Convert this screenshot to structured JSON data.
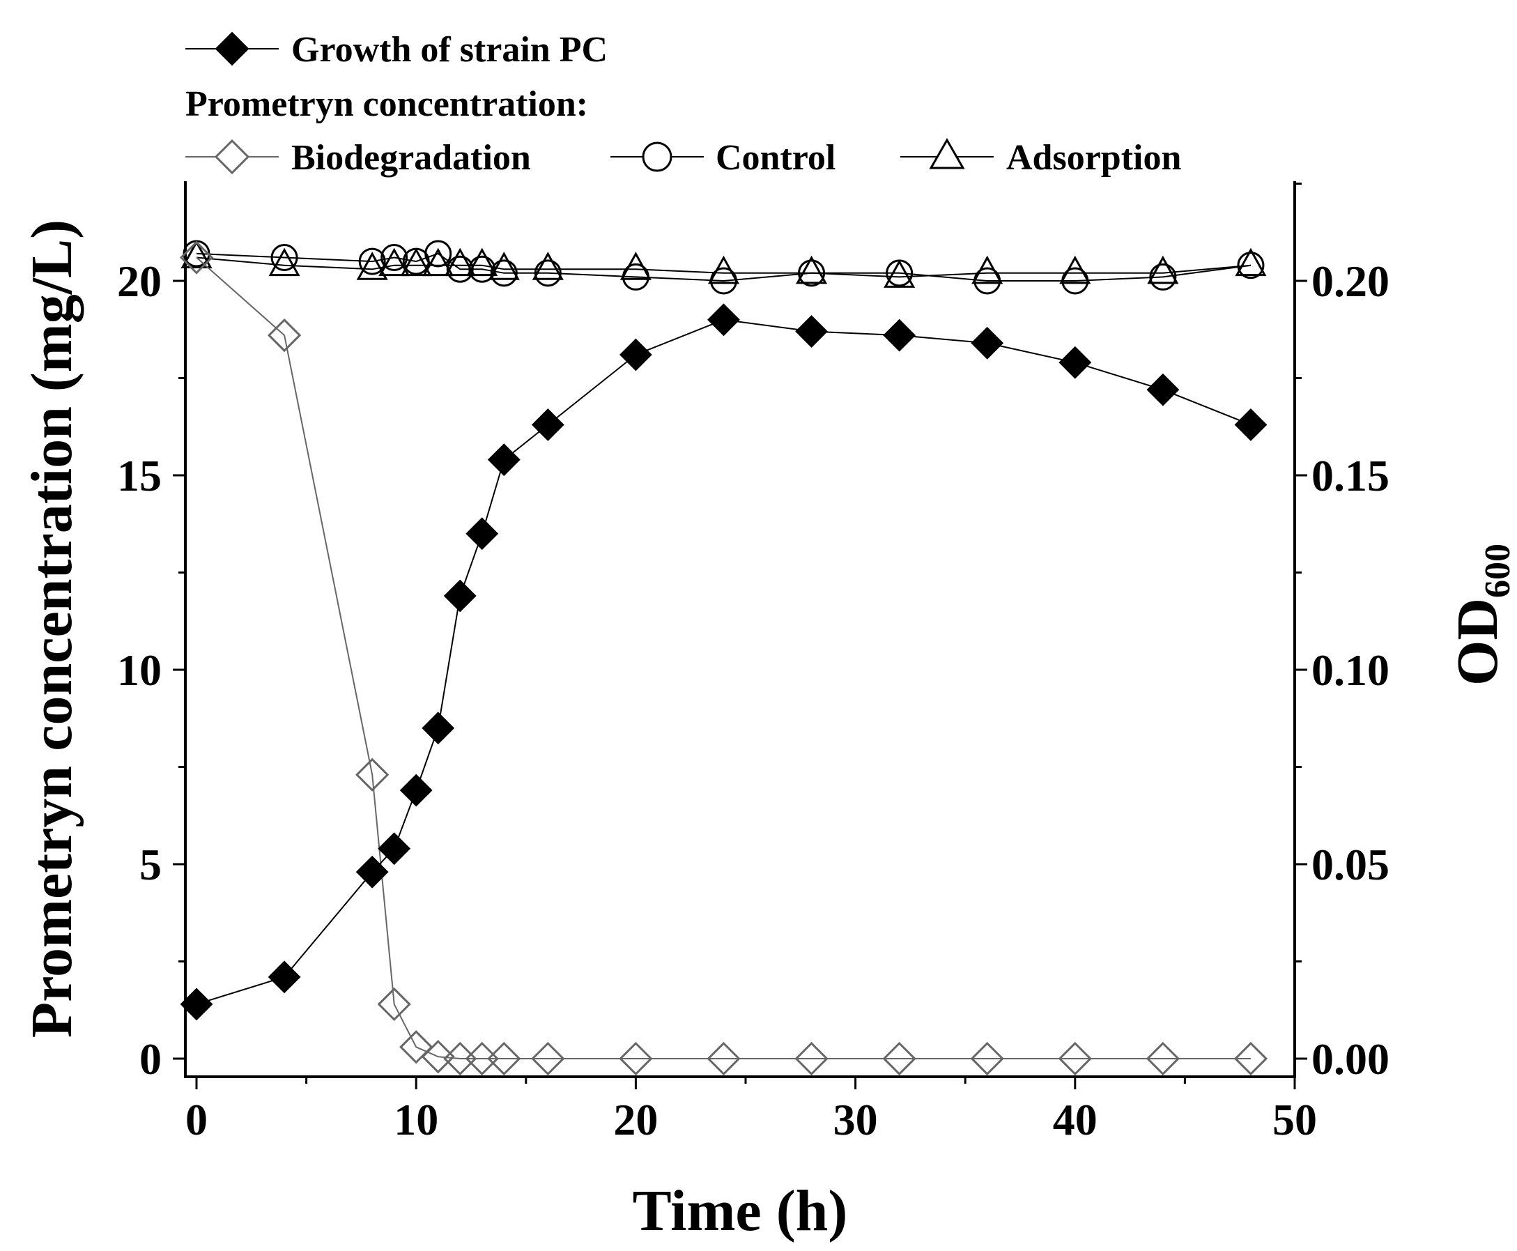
{
  "chart_data": {
    "type": "line",
    "xlabel": "Time (h)",
    "ylabel_left": "Prometryn concentration (mg/L)",
    "ylabel_right_main": "OD",
    "ylabel_right_sub": "600",
    "xlim": [
      0,
      50
    ],
    "ylim_left": [
      0,
      22.5
    ],
    "ylim_right": [
      0,
      0.225
    ],
    "x_ticks": [
      0,
      10,
      20,
      30,
      40,
      50
    ],
    "x_tick_labels": [
      "0",
      "10",
      "20",
      "30",
      "40",
      "50"
    ],
    "y_left_ticks": [
      0,
      5,
      10,
      15,
      20
    ],
    "y_left_tick_labels": [
      "0",
      "5",
      "10",
      "15",
      "20"
    ],
    "y_right_ticks": [
      0.0,
      0.05,
      0.1,
      0.15,
      0.2
    ],
    "y_right_tick_labels": [
      "0.00",
      "0.05",
      "0.10",
      "0.15",
      "0.20"
    ],
    "legend_heading": "Prometryn concentration:",
    "series": [
      {
        "name": "Growth of strain PC",
        "axis": "right",
        "marker": "filled-diamond",
        "color": "#000000",
        "x": [
          0,
          4,
          8,
          9,
          10,
          11,
          12,
          13,
          14,
          16,
          20,
          24,
          28,
          32,
          36,
          40,
          44,
          48
        ],
        "y": [
          0.014,
          0.021,
          0.048,
          0.054,
          0.069,
          0.085,
          0.119,
          0.135,
          0.154,
          0.163,
          0.181,
          0.19,
          0.187,
          0.186,
          0.184,
          0.179,
          0.172,
          0.163
        ]
      },
      {
        "name": "Biodegradation",
        "axis": "left",
        "marker": "open-diamond",
        "color": "#666666",
        "x": [
          0,
          4,
          8,
          9,
          10,
          11,
          12,
          13,
          14,
          16,
          20,
          24,
          28,
          32,
          36,
          40,
          44,
          48
        ],
        "y": [
          20.6,
          18.6,
          7.3,
          1.4,
          0.3,
          0.05,
          0.0,
          0.0,
          0.0,
          0.0,
          0.0,
          0.0,
          0.0,
          0.0,
          0.0,
          0.0,
          0.0,
          0.0
        ]
      },
      {
        "name": "Control",
        "axis": "left",
        "marker": "open-circle",
        "color": "#000000",
        "x": [
          0,
          4,
          8,
          9,
          10,
          11,
          12,
          13,
          14,
          16,
          20,
          24,
          28,
          32,
          36,
          40,
          44,
          48
        ],
        "y": [
          20.7,
          20.6,
          20.5,
          20.6,
          20.5,
          20.7,
          20.3,
          20.3,
          20.2,
          20.2,
          20.1,
          20.0,
          20.2,
          20.2,
          20.0,
          20.0,
          20.1,
          20.4
        ]
      },
      {
        "name": "Adsorption",
        "axis": "left",
        "marker": "open-triangle",
        "color": "#000000",
        "x": [
          0,
          4,
          8,
          9,
          10,
          11,
          12,
          13,
          14,
          16,
          20,
          24,
          28,
          32,
          36,
          40,
          44,
          48
        ],
        "y": [
          20.6,
          20.4,
          20.3,
          20.4,
          20.4,
          20.4,
          20.4,
          20.4,
          20.3,
          20.3,
          20.3,
          20.2,
          20.2,
          20.1,
          20.2,
          20.2,
          20.2,
          20.4
        ]
      }
    ]
  }
}
